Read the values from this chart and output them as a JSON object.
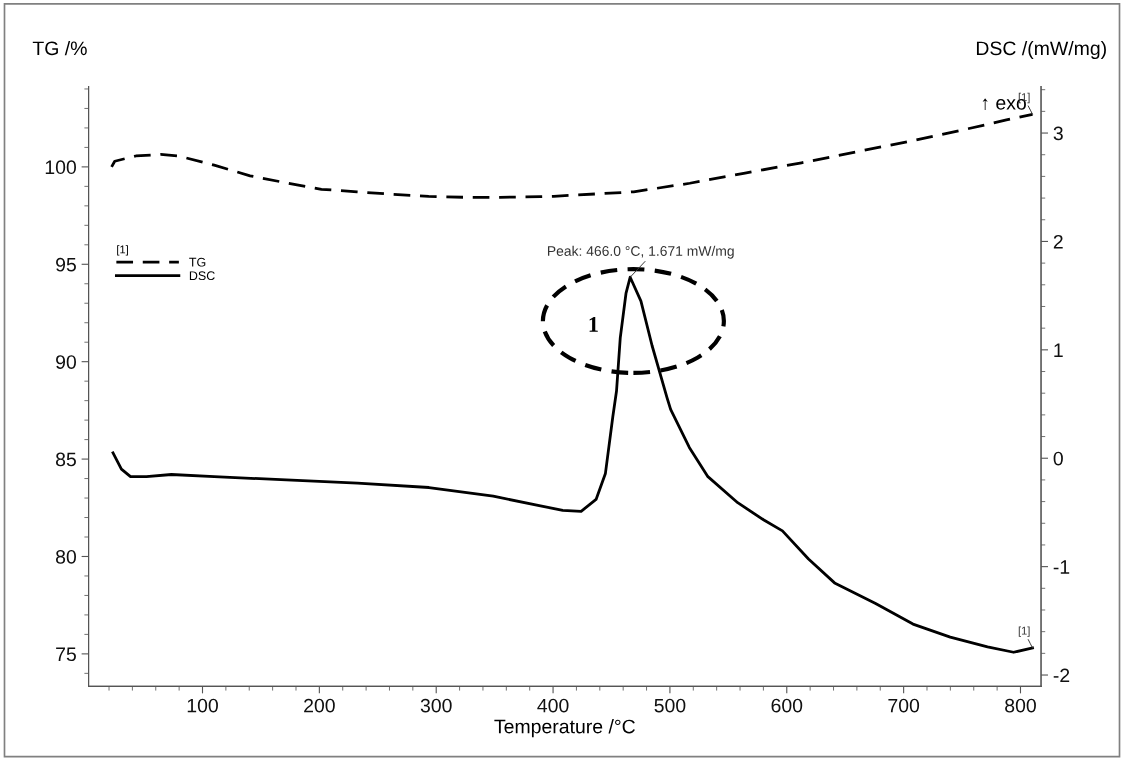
{
  "chart_data": {
    "type": "line",
    "xlabel": "Temperature /°C",
    "ylabel": "TG /%",
    "y2label": "DSC /(mW/mg)",
    "legend_title": "[1]",
    "xlim": [
      2.5,
      817.6
    ],
    "xticks": [
      100,
      200,
      300,
      400,
      500,
      600,
      700,
      800
    ],
    "ylim": [
      73.33,
      104.13
    ],
    "yticks": [
      75,
      80,
      85,
      90,
      95,
      100
    ],
    "y2lim": [
      -2.105,
      3.43
    ],
    "y2ticks": [
      -2,
      -1,
      0,
      1,
      2,
      3
    ],
    "grid": false,
    "legend": "top left",
    "marker": "none",
    "series": [
      {
        "name": "TG",
        "color": "#000000",
        "line_style": "dashed",
        "axis": "y",
        "x": [
          22.2,
          24.9,
          43.0,
          64.2,
          79.5,
          110.0,
          140.7,
          171.7,
          201.8,
          232.3,
          263.0,
          293.6,
          324.0,
          354.7,
          389.0,
          400.6,
          469.0,
          517.0,
          564.3,
          612.6,
          660.4,
          708.2,
          756.0,
          788.0,
          810.3
        ],
        "values": [
          100.0,
          100.29,
          100.56,
          100.64,
          100.56,
          100.09,
          99.54,
          99.18,
          98.85,
          98.72,
          98.59,
          98.49,
          98.44,
          98.44,
          98.47,
          98.49,
          98.72,
          99.16,
          99.68,
          100.21,
          100.78,
          101.35,
          101.97,
          102.41,
          102.7
        ]
      },
      {
        "name": "DSC",
        "color": "#000000",
        "line_style": "solid",
        "axis": "y2",
        "x": [
          23.4,
          30.6,
          38.4,
          52.0,
          73.4,
          110.0,
          171.7,
          232.6,
          293.8,
          348.8,
          389.2,
          408.3,
          424.0,
          436.8,
          444.8,
          451.1,
          454.3,
          457.5,
          462.4,
          466.0,
          475.2,
          484.7,
          497.5,
          500.6,
          516.6,
          532.5,
          558.0,
          580.4,
          596.3,
          618.6,
          640.9,
          676.0,
          708.0,
          739.9,
          771.8,
          794.1,
          810.3
        ],
        "values": [
          0.05,
          -0.1,
          -0.17,
          -0.17,
          -0.15,
          -0.17,
          -0.2,
          -0.23,
          -0.27,
          -0.35,
          -0.44,
          -0.48,
          -0.49,
          -0.38,
          -0.14,
          0.38,
          0.62,
          1.11,
          1.52,
          1.67,
          1.45,
          1.04,
          0.56,
          0.45,
          0.1,
          -0.17,
          -0.41,
          -0.57,
          -0.67,
          -0.93,
          -1.15,
          -1.34,
          -1.53,
          -1.65,
          -1.74,
          -1.79,
          -1.75
        ]
      }
    ],
    "annotations": [
      "↑ exo",
      "Peak: 466.0 °C, 1.671 mW/mg",
      "1",
      "[1]",
      "[1]"
    ]
  }
}
